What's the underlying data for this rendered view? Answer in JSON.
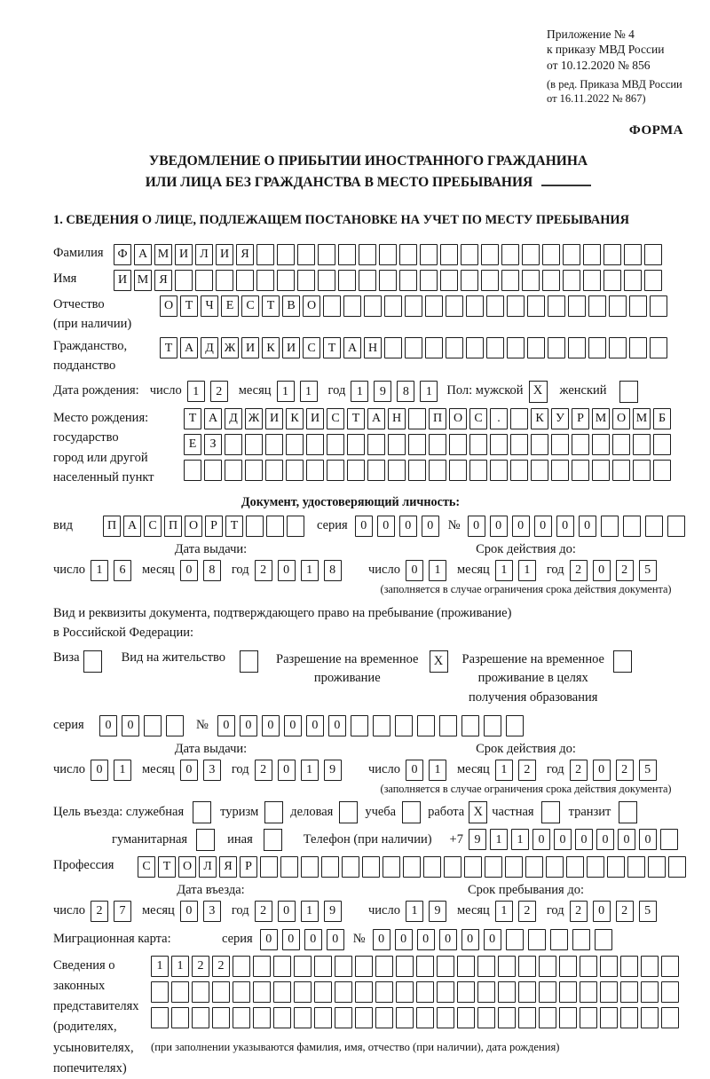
{
  "meta": {
    "note1_lines": [
      "Приложение № 4",
      "к приказу МВД России",
      "от 10.12.2020 № 856"
    ],
    "note2_lines": [
      "(в ред. Приказа МВД России",
      "от 16.11.2022 № 867)"
    ],
    "forma": "ФОРМА"
  },
  "title": {
    "line1": "УВЕДОМЛЕНИЕ О ПРИБЫТИИ ИНОСТРАННОГО ГРАЖДАНИНА",
    "line2": "ИЛИ ЛИЦА БЕЗ ГРАЖДАНСТВА В МЕСТО ПРЕБЫВАНИЯ"
  },
  "section1": {
    "title": "1. СВЕДЕНИЯ О ЛИЦЕ, ПОДЛЕЖАЩЕМ ПОСТАНОВКЕ НА УЧЕТ ПО МЕСТУ ПРЕБЫВАНИЯ"
  },
  "labels": {
    "day": "число",
    "month": "месяц",
    "year": "год",
    "seriya": "серия",
    "num": "№",
    "vid": "вид"
  },
  "person": {
    "surname": {
      "label": "Фамилия",
      "text": "ФАМИЛИЯ",
      "total": 27
    },
    "name": {
      "label": "Имя",
      "text": "ИМЯ",
      "total": 27
    },
    "patronymic": {
      "label1": "Отчество",
      "label2": "(при наличии)",
      "text": "ОТЧЕСТВО",
      "total": 25
    },
    "citizenship": {
      "label1": "Гражданство,",
      "label2": "подданство",
      "text": "ТАДЖИКИСТАН",
      "total": 25
    },
    "birth": {
      "label": "Дата рождения:",
      "day": "12",
      "month": "11",
      "year": "1981"
    },
    "sex": {
      "label_male": "Пол: мужской",
      "male": "X",
      "label_female": "женский",
      "female": ""
    },
    "birthplace": {
      "label": "Место рождения:",
      "sub1": "государство",
      "sub2": "город или другой",
      "sub3": "населенный пункт",
      "row1": {
        "text": "ТАДЖИКИСТАН ПОС. КУРМОМБ",
        "total": 24
      },
      "row2": {
        "text": "ЕЗ",
        "total": 24
      },
      "row3": {
        "text": "",
        "total": 24
      }
    }
  },
  "iddoc": {
    "header": "Документ, удостоверяющий личность:",
    "kind": {
      "text": "ПАСПОРТ",
      "total": 10
    },
    "seriya": {
      "text": "0000",
      "total": 4
    },
    "number": {
      "text": "000000",
      "total": 10
    },
    "issue": {
      "header": "Дата выдачи:",
      "day": "16",
      "month": "08",
      "year": "2018"
    },
    "expiry": {
      "header": "Срок действия до:",
      "day": "01",
      "month": "11",
      "year": "2025"
    },
    "note": "(заполняется в случае ограничения срока действия документа)"
  },
  "resdoc": {
    "intro1": "Вид и реквизиты документа, подтверждающего право на пребывание (проживание)",
    "intro2": "в Российской Федерации:",
    "visa": {
      "label": "Виза",
      "checked": ""
    },
    "vnzh": {
      "label": "Вид на жительство",
      "checked": ""
    },
    "rvp": {
      "line1": "Разрешение на временное",
      "line2": "проживание",
      "checked": "X"
    },
    "rvpo": {
      "line1": "Разрешение на временное",
      "line2": "проживание в целях",
      "line3": "получения образования",
      "checked": ""
    },
    "seriya": {
      "text": "00",
      "total": 4
    },
    "number": {
      "text": "000000",
      "total": 14
    },
    "issue": {
      "header": "Дата выдачи:",
      "day": "01",
      "month": "03",
      "year": "2019"
    },
    "expiry": {
      "header": "Срок действия до:",
      "day": "01",
      "month": "12",
      "year": "2025"
    },
    "note": "(заполняется в случае ограничения срока действия документа)"
  },
  "purpose": {
    "label": "Цель въезда: служебная",
    "sluzhebnaya_checked": "",
    "tourism": {
      "label": "туризм",
      "checked": ""
    },
    "business": {
      "label": "деловая",
      "checked": ""
    },
    "study": {
      "label": "учеба",
      "checked": ""
    },
    "work": {
      "label": "работа",
      "checked": "X"
    },
    "private": {
      "label": "частная",
      "checked": ""
    },
    "transit": {
      "label": "транзит",
      "checked": ""
    },
    "humanitarian": {
      "label": "гуманитарная",
      "checked": ""
    },
    "other": {
      "label": "иная",
      "checked": ""
    },
    "phone": {
      "label": "Телефон (при наличии)",
      "prefix": "+7",
      "text": "911000000",
      "total": 10
    }
  },
  "profession": {
    "label": "Профессия",
    "text": "СТОЛЯР",
    "total": 27
  },
  "entry": {
    "date": {
      "header": "Дата въезда:",
      "day": "27",
      "month": "03",
      "year": "2019"
    },
    "stay": {
      "header": "Срок пребывания до:",
      "day": "19",
      "month": "12",
      "year": "2025"
    }
  },
  "migcard": {
    "label": "Миграционная карта:",
    "seriya": {
      "text": "0000",
      "total": 4
    },
    "number": {
      "text": "000000",
      "total": 11
    }
  },
  "reps": {
    "l1": "Сведения о",
    "l2": "законных",
    "l3": "представителях",
    "l4": "(родителях,",
    "l5": "усыновителях,",
    "l6": "попечителях)",
    "row1": {
      "text": "1122",
      "total": 26
    },
    "row2": {
      "text": "",
      "total": 26
    },
    "row3": {
      "text": "",
      "total": 26
    },
    "note": "(при заполнении указываются фамилия, имя, отчество (при наличии), дата рождения)"
  }
}
